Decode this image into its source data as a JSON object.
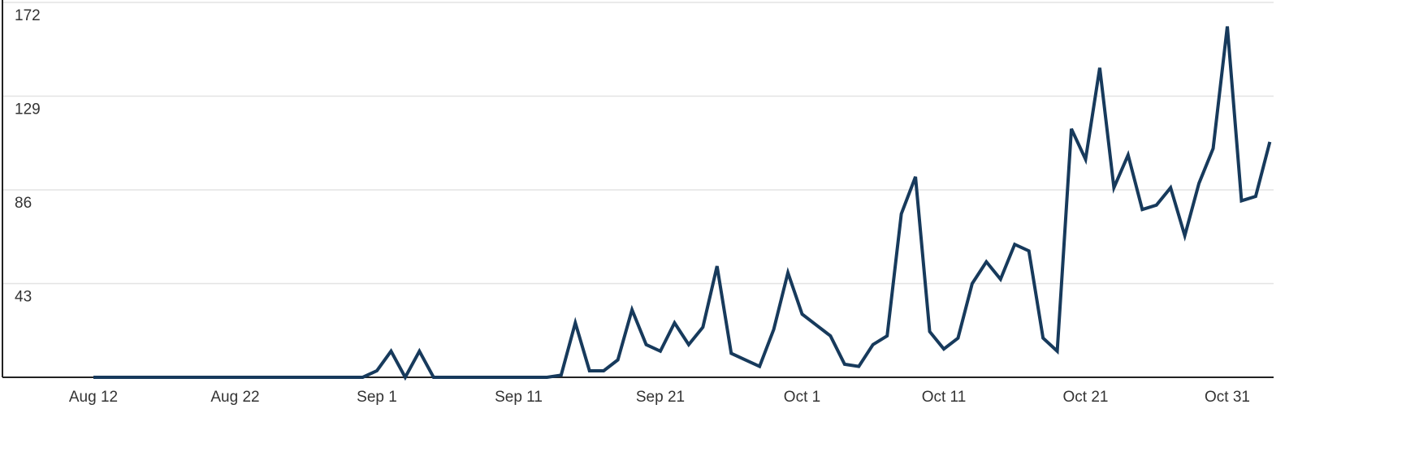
{
  "chart_data": {
    "type": "line",
    "categories": [
      "Aug 12",
      null,
      null,
      null,
      null,
      null,
      null,
      null,
      null,
      null,
      "Aug 22",
      null,
      null,
      null,
      null,
      null,
      null,
      null,
      null,
      null,
      "Sep 1",
      null,
      null,
      null,
      null,
      null,
      null,
      null,
      null,
      null,
      "Sep 11",
      null,
      null,
      null,
      null,
      null,
      null,
      null,
      null,
      null,
      "Sep 21",
      null,
      null,
      null,
      null,
      null,
      null,
      null,
      null,
      null,
      "Oct 1",
      null,
      null,
      null,
      null,
      null,
      null,
      null,
      null,
      null,
      "Oct 11",
      null,
      null,
      null,
      null,
      null,
      null,
      null,
      null,
      null,
      "Oct 21",
      null,
      null,
      null,
      null,
      null,
      null,
      null,
      null,
      null,
      "Oct 31",
      null,
      null,
      null
    ],
    "values": [
      0,
      0,
      0,
      0,
      0,
      0,
      0,
      0,
      0,
      0,
      0,
      0,
      0,
      0,
      0,
      0,
      0,
      0,
      0,
      0,
      3,
      12,
      0,
      12,
      0,
      0,
      0,
      0,
      0,
      0,
      0,
      0,
      0,
      1,
      25,
      3,
      3,
      8,
      31,
      15,
      12,
      25,
      15,
      23,
      51,
      11,
      8,
      5,
      22,
      48,
      29,
      24,
      19,
      6,
      5,
      15,
      19,
      75,
      92,
      21,
      13,
      18,
      43,
      53,
      45,
      61,
      58,
      18,
      12,
      114,
      100,
      142,
      87,
      102,
      77,
      79,
      87,
      65,
      89,
      105,
      161,
      81,
      83,
      108
    ],
    "color": "#173a5c",
    "ylim": [
      0,
      172
    ],
    "yticks": [
      43,
      86,
      129,
      172
    ],
    "grid": true
  }
}
